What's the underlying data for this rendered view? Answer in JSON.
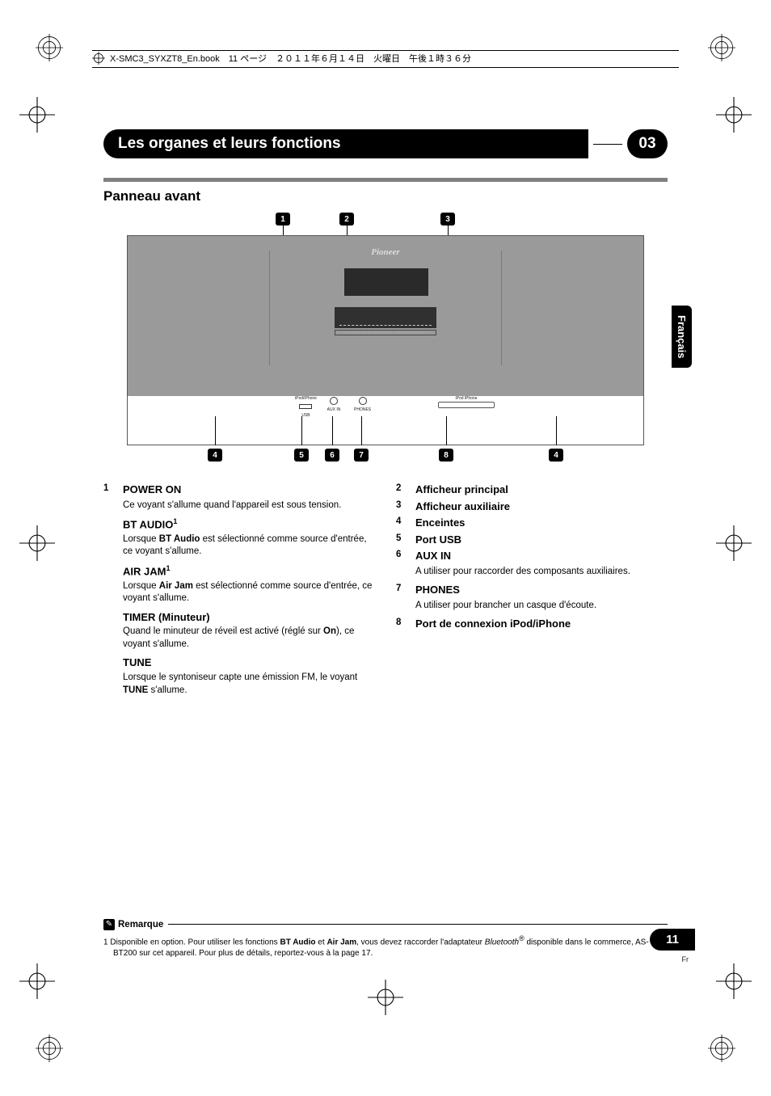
{
  "book_header": "X-SMC3_SYXZT8_En.book　11 ページ　２０１１年６月１４日　火曜日　午後１時３６分",
  "chapter": {
    "title": "Les organes et leurs fonctions",
    "number": "03"
  },
  "section_title": "Panneau avant",
  "side_tab": "Français",
  "diagram": {
    "callouts_top": [
      "1",
      "2",
      "3"
    ],
    "callouts_bottom": [
      "4",
      "5",
      "6",
      "7",
      "8",
      "4"
    ],
    "logo": "Pioneer",
    "ports": {
      "usb": "USB",
      "usb_top": "iPod/iPhone",
      "aux": "AUX IN",
      "phones": "PHONES",
      "dock": "iPod iPhone"
    },
    "strip": "POWER ON  BT AUDIO  AIR JAM  TIMER  TUNE"
  },
  "left_items": {
    "num": "1",
    "power_on": {
      "head": "POWER ON",
      "text": "Ce voyant s'allume quand l'appareil est sous tension."
    },
    "bt_audio": {
      "head": "BT AUDIO",
      "sup": "1",
      "pre": "Lorsque ",
      "bold": "BT Audio",
      "post": " est sélectionné comme source d'entrée, ce voyant s'allume."
    },
    "air_jam": {
      "head": "AIR JAM",
      "sup": "1",
      "pre": "Lorsque ",
      "bold": "Air Jam",
      "post": " est sélectionné comme source d'entrée, ce voyant s'allume."
    },
    "timer": {
      "head": "TIMER (Minuteur)",
      "pre": "Quand le minuteur de réveil est activé (réglé sur ",
      "bold": "On",
      "post": "), ce voyant s'allume."
    },
    "tune": {
      "head": "TUNE",
      "pre": "Lorsque le syntoniseur capte une émission FM, le voyant ",
      "bold": "TUNE",
      "post": " s'allume."
    }
  },
  "right_items": [
    {
      "num": "2",
      "head": "Afficheur principal"
    },
    {
      "num": "3",
      "head": "Afficheur auxiliaire"
    },
    {
      "num": "4",
      "head": "Enceintes"
    },
    {
      "num": "5",
      "head": "Port USB"
    },
    {
      "num": "6",
      "head": "AUX IN",
      "text": "A utiliser pour raccorder des composants auxiliaires."
    },
    {
      "num": "7",
      "head": "PHONES",
      "text": "A utiliser pour brancher un casque d'écoute."
    },
    {
      "num": "8",
      "head": "Port de connexion iPod/iPhone"
    }
  ],
  "remark": {
    "icon": "✎",
    "label": "Remarque",
    "note_num": "1",
    "pre": "Disponible en option. Pour utiliser les fonctions ",
    "b1": "BT Audio",
    "mid1": " et ",
    "b2": "Air Jam",
    "mid2": ", vous devez raccorder l'adaptateur ",
    "bt": "Bluetooth",
    "reg": "®",
    "post": " disponible dans le commerce,  AS-BT200 sur cet appareil. Pour plus de détails, reportez-vous à la page 17."
  },
  "page_number": "11",
  "page_lang": "Fr",
  "colors": {
    "accent": "#808080",
    "black": "#000000"
  }
}
